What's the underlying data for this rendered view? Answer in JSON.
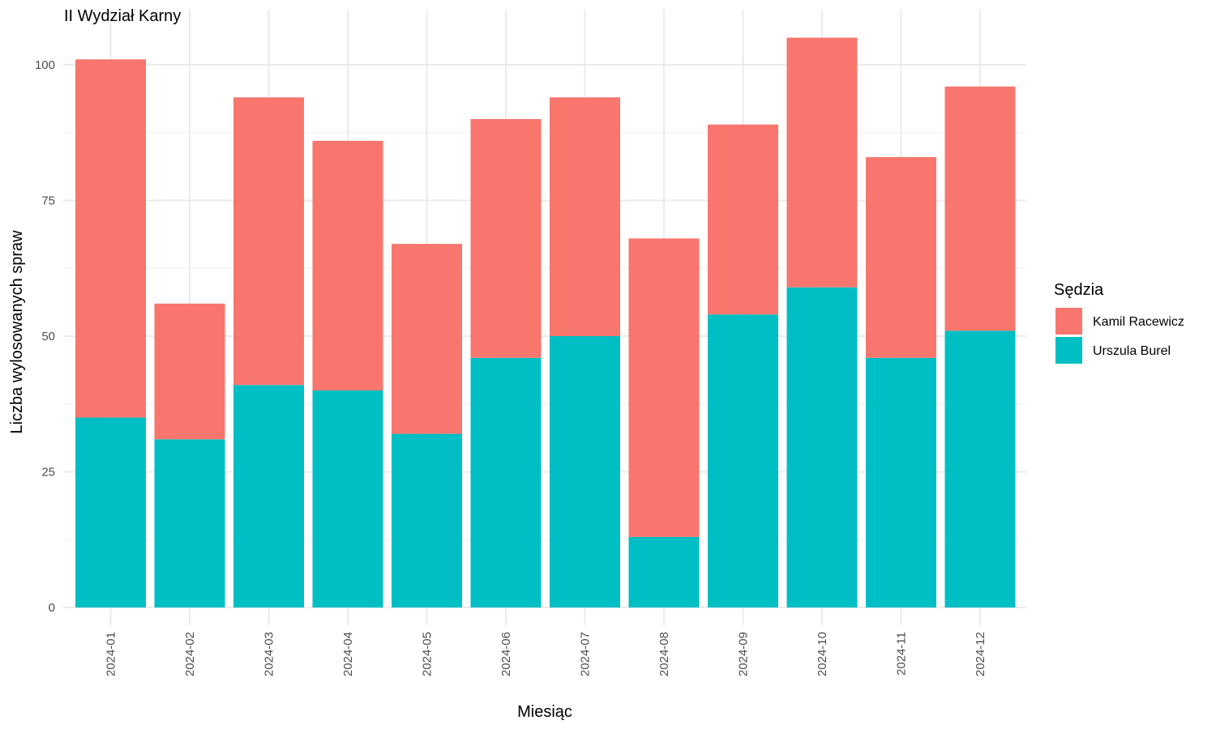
{
  "chart_data": {
    "type": "bar",
    "stacked": true,
    "title": "II Wydział Karny",
    "xlabel": "Miesiąc",
    "ylabel": "Liczba wylosowanych spraw",
    "ylim": [
      0,
      108
    ],
    "yticks": [
      0,
      25,
      50,
      75,
      100
    ],
    "grid": true,
    "legend_position": "right",
    "legend_title": "Sędzia",
    "categories": [
      "2024-01",
      "2024-02",
      "2024-03",
      "2024-04",
      "2024-05",
      "2024-06",
      "2024-07",
      "2024-08",
      "2024-09",
      "2024-10",
      "2024-11",
      "2024-12"
    ],
    "series": [
      {
        "name": "Urszula Burel",
        "color": "#00bfc4",
        "values": [
          35,
          31,
          41,
          40,
          32,
          46,
          50,
          13,
          54,
          59,
          46,
          51
        ]
      },
      {
        "name": "Kamil Racewicz",
        "color": "#f8766d",
        "values": [
          66,
          25,
          53,
          46,
          35,
          44,
          44,
          55,
          35,
          46,
          37,
          45
        ]
      }
    ],
    "legend_order": [
      "Kamil Racewicz",
      "Urszula Burel"
    ]
  }
}
